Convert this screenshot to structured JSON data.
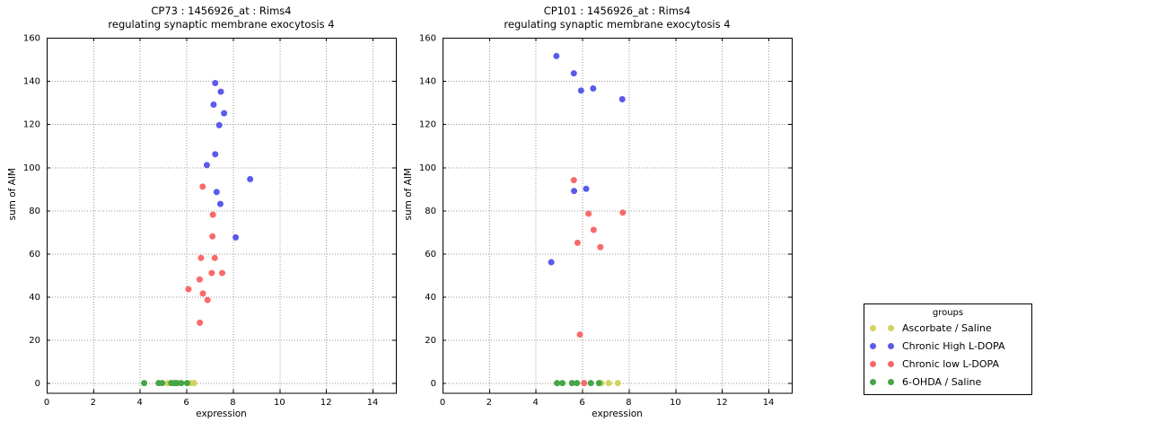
{
  "colors": {
    "yellow": "#d2d25e",
    "blue": "#5a5aeb",
    "red": "#f86a6a",
    "green": "#46a546",
    "grid": "#999999",
    "axis": "#000000",
    "background": "#ffffff"
  },
  "legend": {
    "title": "groups",
    "entries": [
      {
        "label": "Ascorbate / Saline",
        "color": "yellow"
      },
      {
        "label": "Chronic High L-DOPA",
        "color": "blue"
      },
      {
        "label": "Chronic low L-DOPA",
        "color": "red"
      },
      {
        "label": "6-OHDA / Saline",
        "color": "green"
      }
    ]
  },
  "axes_shared": {
    "xlabel": "expression",
    "ylabel": "sum of AIM",
    "xticks": [
      0,
      2,
      4,
      6,
      8,
      10,
      12,
      14
    ],
    "yticks": [
      0,
      20,
      40,
      60,
      80,
      100,
      120,
      140,
      160
    ],
    "xlim": [
      0,
      15
    ],
    "ylim": [
      -4.5,
      160
    ],
    "grid": "dotted"
  },
  "chart_data": [
    {
      "type": "scatter",
      "title_line1": "CP73 : 1456926_at : Rims4",
      "title_line2": "regulating synaptic membrane exocytosis 4",
      "series": [
        {
          "name": "Ascorbate / Saline",
          "color": "yellow",
          "points": [
            [
              5.19,
              0
            ],
            [
              5.64,
              0
            ],
            [
              6.18,
              0
            ],
            [
              6.33,
              0
            ]
          ]
        },
        {
          "name": "Chronic High L-DOPA",
          "color": "blue",
          "points": [
            [
              7.24,
              139
            ],
            [
              7.48,
              135
            ],
            [
              7.17,
              129
            ],
            [
              7.62,
              125
            ],
            [
              7.41,
              119.5
            ],
            [
              7.24,
              106
            ],
            [
              6.88,
              101
            ],
            [
              8.74,
              94.5
            ],
            [
              7.3,
              88.5
            ],
            [
              7.46,
              83
            ],
            [
              8.12,
              67.5
            ]
          ]
        },
        {
          "name": "Chronic low L-DOPA",
          "color": "red",
          "points": [
            [
              6.7,
              91
            ],
            [
              7.14,
              78
            ],
            [
              7.12,
              68
            ],
            [
              6.63,
              58
            ],
            [
              7.22,
              58
            ],
            [
              7.09,
              51
            ],
            [
              7.54,
              51
            ],
            [
              6.57,
              48
            ],
            [
              6.09,
              43.5
            ],
            [
              6.71,
              41.5
            ],
            [
              6.91,
              38.5
            ],
            [
              6.58,
              28
            ]
          ]
        },
        {
          "name": "6-OHDA / Saline",
          "color": "green",
          "points": [
            [
              4.19,
              0
            ],
            [
              4.81,
              0
            ],
            [
              4.96,
              0
            ],
            [
              5.35,
              0
            ],
            [
              5.48,
              0
            ],
            [
              5.58,
              0
            ],
            [
              5.78,
              0
            ],
            [
              6.03,
              0
            ]
          ]
        }
      ]
    },
    {
      "type": "scatter",
      "title_line1": "CP101 : 1456926_at : Rims4",
      "title_line2": "regulating synaptic membrane exocytosis 4",
      "series": [
        {
          "name": "Ascorbate / Saline",
          "color": "yellow",
          "points": [
            [
              6.82,
              0
            ],
            [
              7.14,
              0
            ],
            [
              7.53,
              0
            ]
          ]
        },
        {
          "name": "Chronic High L-DOPA",
          "color": "blue",
          "points": [
            [
              4.89,
              151.5
            ],
            [
              5.64,
              143.5
            ],
            [
              5.95,
              135.5
            ],
            [
              6.47,
              136.5
            ],
            [
              7.72,
              131.5
            ],
            [
              6.17,
              90
            ],
            [
              5.65,
              89
            ],
            [
              4.67,
              56
            ]
          ]
        },
        {
          "name": "Chronic low L-DOPA",
          "color": "red",
          "points": [
            [
              5.64,
              94
            ],
            [
              6.27,
              78.5
            ],
            [
              7.74,
              79
            ],
            [
              6.49,
              71
            ],
            [
              5.8,
              65
            ],
            [
              6.78,
              63
            ],
            [
              5.9,
              22.5
            ],
            [
              6.08,
              0
            ]
          ]
        },
        {
          "name": "6-OHDA / Saline",
          "color": "green",
          "points": [
            [
              4.92,
              0
            ],
            [
              5.15,
              0
            ],
            [
              5.56,
              0
            ],
            [
              5.77,
              0
            ],
            [
              6.37,
              0
            ],
            [
              6.72,
              0
            ]
          ]
        }
      ]
    }
  ]
}
